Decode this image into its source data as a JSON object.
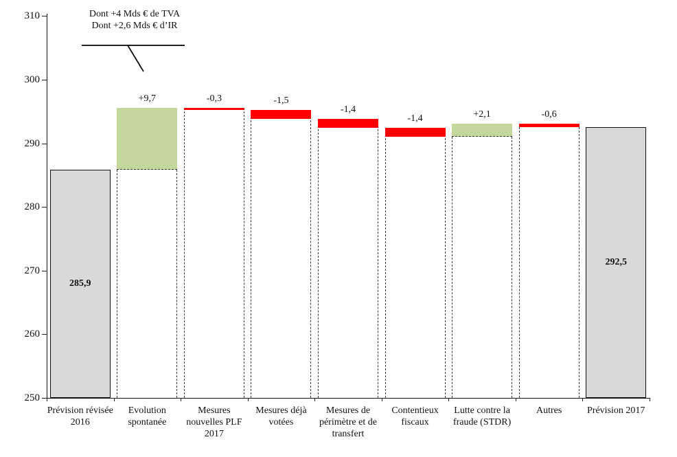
{
  "annotation": {
    "line1": "Dont +4 Mds € de TVA",
    "line2": "Dont +2,6 Mds € d’IR"
  },
  "chart_data": {
    "type": "bar",
    "subtype": "waterfall",
    "title": "",
    "xlabel": "",
    "ylabel": "",
    "ylim": [
      250,
      310
    ],
    "yticks": [
      250,
      260,
      270,
      280,
      290,
      300,
      310
    ],
    "grid": false,
    "legend": false,
    "categories": [
      "Prévision révisée 2016",
      "Evolution spontanée",
      "Mesures nouvelles PLF 2017",
      "Mesures déjà votées",
      "Mesures de périmètre et de transfert",
      "Contentieux fiscaux",
      "Lutte contre la fraude (STDR)",
      "Autres",
      "Prévision 2017"
    ],
    "bars": [
      {
        "category": "Prévision révisée 2016",
        "kind": "total",
        "value": 285.9,
        "display": "285,9"
      },
      {
        "category": "Evolution spontanée",
        "kind": "increase",
        "value": 9.7,
        "display": "+9,7"
      },
      {
        "category": "Mesures nouvelles PLF 2017",
        "kind": "decrease",
        "value": -0.3,
        "display": "-0,3"
      },
      {
        "category": "Mesures déjà votées",
        "kind": "decrease",
        "value": -1.5,
        "display": "-1,5"
      },
      {
        "category": "Mesures de périmètre et de transfert",
        "kind": "decrease",
        "value": -1.4,
        "display": "-1,4"
      },
      {
        "category": "Contentieux fiscaux",
        "kind": "decrease",
        "value": -1.4,
        "display": "-1,4"
      },
      {
        "category": "Lutte contre la fraude (STDR)",
        "kind": "increase",
        "value": 2.1,
        "display": "+2,1"
      },
      {
        "category": "Autres",
        "kind": "decrease",
        "value": -0.6,
        "display": "-0,6"
      },
      {
        "category": "Prévision 2017",
        "kind": "total",
        "value": 292.5,
        "display": "292,5"
      }
    ],
    "colors": {
      "total": "#d9d9d9",
      "increase": "#c3d69b",
      "decrease": "#ff0000",
      "axis": "#111111"
    }
  }
}
